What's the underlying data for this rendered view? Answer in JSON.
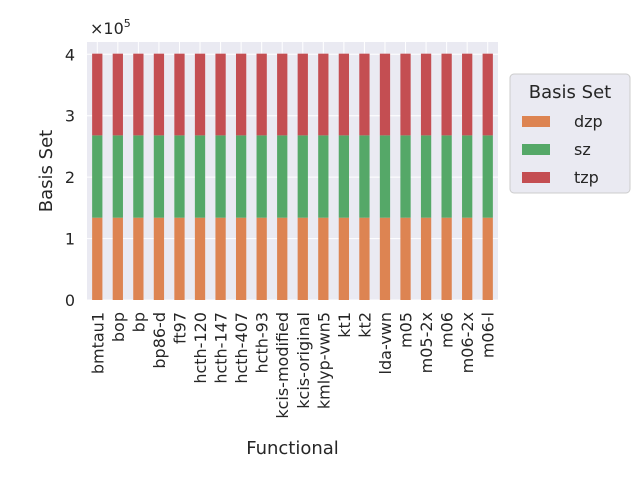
{
  "chart_data": {
    "type": "bar",
    "stacked": true,
    "categories": [
      "bmtau1",
      "bop",
      "bp",
      "bp86-d",
      "ft97",
      "hcth-120",
      "hcth-147",
      "hcth-407",
      "hcth-93",
      "kcis-modified",
      "kcis-original",
      "kmlyp-vwn5",
      "kt1",
      "kt2",
      "lda-vwn",
      "m05",
      "m05-2x",
      "m06",
      "m06-2x",
      "m06-l"
    ],
    "series": [
      {
        "name": "dzp",
        "color": "#dd8452",
        "values": [
          134000,
          134000,
          134000,
          134000,
          134000,
          134000,
          134000,
          134000,
          134000,
          134000,
          134000,
          134000,
          134000,
          134000,
          134000,
          134000,
          134000,
          134000,
          134000,
          134000
        ]
      },
      {
        "name": "sz",
        "color": "#55a868",
        "values": [
          134000,
          134000,
          134000,
          134000,
          134000,
          134000,
          134000,
          134000,
          134000,
          134000,
          134000,
          134000,
          134000,
          134000,
          134000,
          134000,
          134000,
          134000,
          134000,
          134000
        ]
      },
      {
        "name": "tzp",
        "color": "#c44e52",
        "values": [
          133000,
          133000,
          133000,
          133000,
          133000,
          133000,
          133000,
          133000,
          133000,
          133000,
          133000,
          133000,
          133000,
          133000,
          133000,
          133000,
          133000,
          133000,
          133000,
          133000
        ]
      }
    ],
    "xlabel": "Functional",
    "ylabel": "Basis Set",
    "ylim": [
      0,
      420000
    ],
    "yticks": [
      0,
      100000,
      200000,
      300000,
      400000
    ],
    "ytick_labels": [
      "0",
      "1",
      "2",
      "3",
      "4"
    ],
    "offset_label": "×10",
    "offset_exponent": "5",
    "legend_title": "Basis Set",
    "legend_position": "upper right, outside plot",
    "grid": true,
    "background": "#eaeaf2"
  }
}
